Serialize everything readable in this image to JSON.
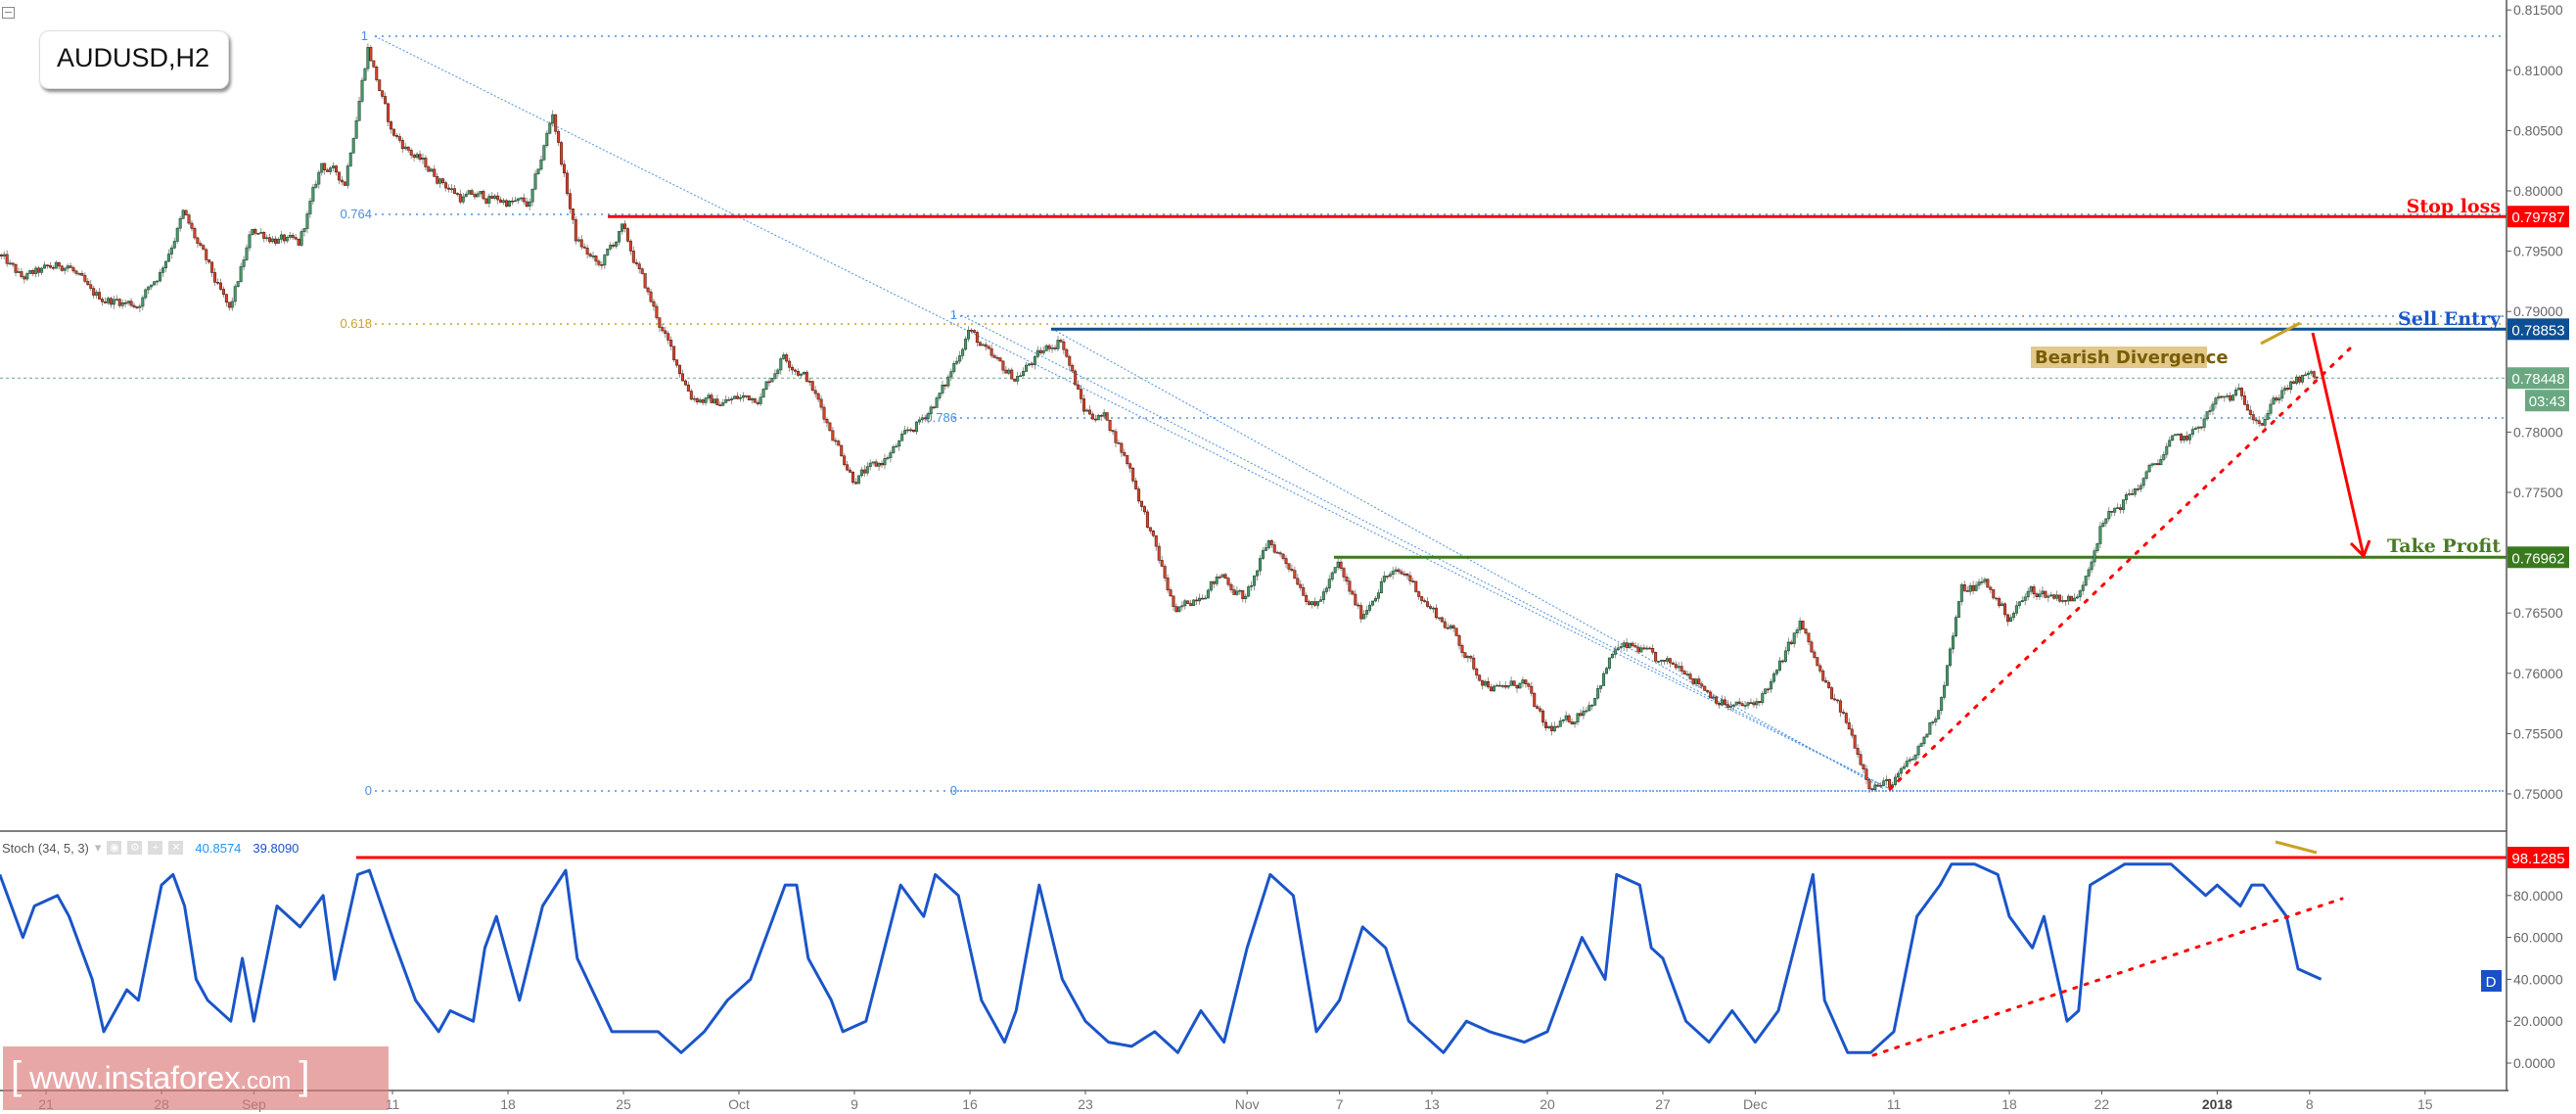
{
  "header": {
    "symbol_label": "AUDUSD,H2"
  },
  "indicator": {
    "name": "Stoch (34, 5, 3)",
    "value_k": "40.8574",
    "value_d": "39.8090",
    "d_badge": "D"
  },
  "watermark": {
    "left_bracket": "[",
    "text": "www.instaforex",
    "suffix": ".com",
    "right_bracket": "]"
  },
  "colors": {
    "bull": "#4c9a6e",
    "bear": "#d9452b",
    "stop_loss": "#ff0000",
    "sell_entry": "#0d4f94",
    "take_profit": "#3a7a1f",
    "last_price": "#6aa882",
    "fib": "#4a8fe0",
    "fib_618": "#c9a227",
    "stoch": "#1a55c9",
    "divergence": "#c9a227"
  },
  "levels": {
    "stop_loss": {
      "label": "Stop loss",
      "price": "0.79787"
    },
    "sell_entry": {
      "label": "Sell Entry",
      "price": "0.78853"
    },
    "take_profit": {
      "label": "Take Profit",
      "price": "0.76962"
    },
    "last_price": {
      "price": "0.78448",
      "countdown": "03:43"
    },
    "bearish_divergence": "Bearish Divergence",
    "stoch_level": "98.1285"
  },
  "fib_labels": {
    "a_1": "1",
    "a_0764": "0.764",
    "a_0618": "0.618",
    "a_0": "0",
    "b_1": "1",
    "b_0786": "0.786",
    "b_0": "0"
  },
  "chart_data": [
    {
      "type": "candlestick",
      "title": "AUDUSD,H2",
      "timeframe": "H2",
      "ylim": [
        0.748,
        0.8155
      ],
      "grid": false,
      "y_ticks": [
        "0.81500",
        "0.81000",
        "0.80500",
        "0.80000",
        "0.79500",
        "0.79000",
        "0.78000",
        "0.77500",
        "0.76500",
        "0.76000",
        "0.75500",
        "0.75000"
      ],
      "x_ticks": [
        {
          "label": "21",
          "date": "2017-08-21"
        },
        {
          "label": "28",
          "date": "2017-08-28"
        },
        {
          "label": "Sep",
          "date": "2017-09-01"
        },
        {
          "label": "11",
          "date": "2017-09-11"
        },
        {
          "label": "18",
          "date": "2017-09-18"
        },
        {
          "label": "25",
          "date": "2017-09-25"
        },
        {
          "label": "Oct",
          "date": "2017-10-02"
        },
        {
          "label": "9",
          "date": "2017-10-09"
        },
        {
          "label": "16",
          "date": "2017-10-16"
        },
        {
          "label": "23",
          "date": "2017-10-23"
        },
        {
          "label": "Nov",
          "date": "2017-11-01"
        },
        {
          "label": "7",
          "date": "2017-11-07"
        },
        {
          "label": "13",
          "date": "2017-11-13"
        },
        {
          "label": "20",
          "date": "2017-11-20"
        },
        {
          "label": "27",
          "date": "2017-11-27"
        },
        {
          "label": "Dec",
          "date": "2017-12-01"
        },
        {
          "label": "11",
          "date": "2017-12-11"
        },
        {
          "label": "18",
          "date": "2017-12-18"
        },
        {
          "label": "22",
          "date": "2017-12-22"
        },
        {
          "label": "2018",
          "date": "2018-01-02",
          "bold": true
        },
        {
          "label": "8",
          "date": "2018-01-08"
        },
        {
          "label": "15",
          "date": "2018-01-15"
        }
      ],
      "approx_close_path": [
        [
          "2017-08-17",
          0.7947
        ],
        [
          "2017-08-18",
          0.7927
        ],
        [
          "2017-08-22",
          0.794
        ],
        [
          "2017-08-23",
          0.7913
        ],
        [
          "2017-08-25",
          0.7906
        ],
        [
          "2017-08-28",
          0.7933
        ],
        [
          "2017-08-29",
          0.7981
        ],
        [
          "2017-08-31",
          0.7899
        ],
        [
          "2017-09-01",
          0.7968
        ],
        [
          "2017-09-05",
          0.7954
        ],
        [
          "2017-09-06",
          0.8022
        ],
        [
          "2017-09-07",
          0.8008
        ],
        [
          "2017-09-08",
          0.812
        ],
        [
          "2017-09-11",
          0.8049
        ],
        [
          "2017-09-12",
          0.8029
        ],
        [
          "2017-09-14",
          0.7995
        ],
        [
          "2017-09-15",
          0.7995
        ],
        [
          "2017-09-19",
          0.7988
        ],
        [
          "2017-09-20",
          0.8065
        ],
        [
          "2017-09-21",
          0.796
        ],
        [
          "2017-09-22",
          0.7936
        ],
        [
          "2017-09-25",
          0.7968
        ],
        [
          "2017-09-26",
          0.792
        ],
        [
          "2017-09-27",
          0.7872
        ],
        [
          "2017-09-28",
          0.7831
        ],
        [
          "2017-09-29",
          0.7824
        ],
        [
          "2017-10-03",
          0.7831
        ],
        [
          "2017-10-04",
          0.7865
        ],
        [
          "2017-10-05",
          0.7845
        ],
        [
          "2017-10-06",
          0.7804
        ],
        [
          "2017-10-09",
          0.7763
        ],
        [
          "2017-10-10",
          0.777
        ],
        [
          "2017-10-11",
          0.779
        ],
        [
          "2017-10-12",
          0.7811
        ],
        [
          "2017-10-13",
          0.7838
        ],
        [
          "2017-10-16",
          0.7886
        ],
        [
          "2017-10-17",
          0.7859
        ],
        [
          "2017-10-18",
          0.7845
        ],
        [
          "2017-10-20",
          0.7879
        ],
        [
          "2017-10-23",
          0.7818
        ],
        [
          "2017-10-24",
          0.7811
        ],
        [
          "2017-10-25",
          0.777
        ],
        [
          "2017-10-26",
          0.7709
        ],
        [
          "2017-10-27",
          0.7647
        ],
        [
          "2017-10-30",
          0.7668
        ],
        [
          "2017-10-31",
          0.7681
        ],
        [
          "2017-11-01",
          0.7661
        ],
        [
          "2017-11-02",
          0.7709
        ],
        [
          "2017-11-03",
          0.7688
        ],
        [
          "2017-11-06",
          0.7654
        ],
        [
          "2017-11-07",
          0.7688
        ],
        [
          "2017-11-08",
          0.7647
        ],
        [
          "2017-11-09",
          0.7681
        ],
        [
          "2017-11-10",
          0.7681
        ],
        [
          "2017-11-13",
          0.7654
        ],
        [
          "2017-11-14",
          0.7634
        ],
        [
          "2017-11-15",
          0.76
        ],
        [
          "2017-11-16",
          0.7586
        ],
        [
          "2017-11-17",
          0.7593
        ],
        [
          "2017-11-20",
          0.7552
        ],
        [
          "2017-11-21",
          0.7559
        ],
        [
          "2017-11-22",
          0.7579
        ],
        [
          "2017-11-23",
          0.762
        ],
        [
          "2017-11-24",
          0.762
        ],
        [
          "2017-11-27",
          0.7606
        ],
        [
          "2017-11-28",
          0.7606
        ],
        [
          "2017-11-29",
          0.7586
        ],
        [
          "2017-11-30",
          0.7572
        ],
        [
          "2017-12-01",
          0.7572
        ],
        [
          "2017-12-04",
          0.76
        ],
        [
          "2017-12-05",
          0.7641
        ],
        [
          "2017-12-06",
          0.7593
        ],
        [
          "2017-12-07",
          0.7559
        ],
        [
          "2017-12-08",
          0.7511
        ],
        [
          "2017-12-11",
          0.7507
        ],
        [
          "2017-12-12",
          0.7531
        ],
        [
          "2017-12-13",
          0.7572
        ],
        [
          "2017-12-14",
          0.7668
        ],
        [
          "2017-12-15",
          0.7675
        ],
        [
          "2017-12-18",
          0.7647
        ],
        [
          "2017-12-19",
          0.7668
        ],
        [
          "2017-12-21",
          0.7661
        ],
        [
          "2017-12-22",
          0.7722
        ],
        [
          "2017-12-27",
          0.7763
        ],
        [
          "2017-12-28",
          0.779
        ],
        [
          "2017-12-29",
          0.7797
        ],
        [
          "2018-01-02",
          0.7825
        ],
        [
          "2018-01-03",
          0.7831
        ],
        [
          "2018-01-04",
          0.7811
        ],
        [
          "2018-01-05",
          0.7838
        ],
        [
          "2018-01-08",
          0.78448
        ]
      ],
      "last_price": 0.78448
    },
    {
      "type": "line",
      "title": "Stoch (34, 5, 3)",
      "ylim": [
        0,
        100
      ],
      "y_ticks": [
        "80.0000",
        "60.0000",
        "40.0000",
        "20.0000",
        "0.0000"
      ],
      "series": [
        {
          "name": "Stoch",
          "points": [
            [
              "2017-08-17",
              90
            ],
            [
              "2017-08-18",
              60
            ],
            [
              "2017-08-18 12:00",
              75
            ],
            [
              "2017-08-21 12:00",
              80
            ],
            [
              "2017-08-22",
              70
            ],
            [
              "2017-08-23",
              40
            ],
            [
              "2017-08-23 12:00",
              15
            ],
            [
              "2017-08-24 12:00",
              35
            ],
            [
              "2017-08-25",
              30
            ],
            [
              "2017-08-28",
              85
            ],
            [
              "2017-08-28 12:00",
              90
            ],
            [
              "2017-08-29",
              75
            ],
            [
              "2017-08-29 12:00",
              40
            ],
            [
              "2017-08-30",
              30
            ],
            [
              "2017-08-31",
              20
            ],
            [
              "2017-08-31 12:00",
              50
            ],
            [
              "2017-09-01",
              20
            ],
            [
              "2017-09-04",
              75
            ],
            [
              "2017-09-05",
              65
            ],
            [
              "2017-09-06",
              80
            ],
            [
              "2017-09-06 12:00",
              40
            ],
            [
              "2017-09-07 12:00",
              90
            ],
            [
              "2017-09-08",
              92
            ],
            [
              "2017-09-11",
              60
            ],
            [
              "2017-09-12",
              30
            ],
            [
              "2017-09-13",
              15
            ],
            [
              "2017-09-13 12:00",
              25
            ],
            [
              "2017-09-14 12:00",
              20
            ],
            [
              "2017-09-15",
              55
            ],
            [
              "2017-09-15 12:00",
              70
            ],
            [
              "2017-09-18 12:00",
              30
            ],
            [
              "2017-09-19 12:00",
              75
            ],
            [
              "2017-09-20 12:00",
              92
            ],
            [
              "2017-09-21",
              50
            ],
            [
              "2017-09-22 12:00",
              15
            ],
            [
              "2017-09-25 12:00",
              15
            ],
            [
              "2017-09-26 12:00",
              15
            ],
            [
              "2017-09-27 12:00",
              5
            ],
            [
              "2017-09-28 12:00",
              15
            ],
            [
              "2017-09-29 12:00",
              30
            ],
            [
              "2017-10-02 12:00",
              40
            ],
            [
              "2017-10-04",
              85
            ],
            [
              "2017-10-04 12:00",
              85
            ],
            [
              "2017-10-05",
              50
            ],
            [
              "2017-10-06",
              30
            ],
            [
              "2017-10-06 12:00",
              15
            ],
            [
              "2017-10-09 12:00",
              20
            ],
            [
              "2017-10-11",
              85
            ],
            [
              "2017-10-12",
              70
            ],
            [
              "2017-10-12 12:00",
              90
            ],
            [
              "2017-10-13 12:00",
              80
            ],
            [
              "2017-10-16 12:00",
              30
            ],
            [
              "2017-10-17 12:00",
              10
            ],
            [
              "2017-10-18",
              25
            ],
            [
              "2017-10-19",
              85
            ],
            [
              "2017-10-20",
              40
            ],
            [
              "2017-10-23",
              20
            ],
            [
              "2017-10-24",
              10
            ],
            [
              "2017-10-25",
              8
            ],
            [
              "2017-10-26",
              15
            ],
            [
              "2017-10-27",
              5
            ],
            [
              "2017-10-30",
              25
            ],
            [
              "2017-10-31",
              10
            ],
            [
              "2017-11-01",
              55
            ],
            [
              "2017-11-02",
              90
            ],
            [
              "2017-11-03",
              80
            ],
            [
              "2017-11-06",
              15
            ],
            [
              "2017-11-07",
              30
            ],
            [
              "2017-11-08",
              65
            ],
            [
              "2017-11-09",
              55
            ],
            [
              "2017-11-10",
              20
            ],
            [
              "2017-11-13 12:00",
              5
            ],
            [
              "2017-11-14 12:00",
              20
            ],
            [
              "2017-11-15 12:00",
              15
            ],
            [
              "2017-11-17",
              10
            ],
            [
              "2017-11-20",
              15
            ],
            [
              "2017-11-21 12:00",
              60
            ],
            [
              "2017-11-22 12:00",
              40
            ],
            [
              "2017-11-23",
              90
            ],
            [
              "2017-11-24",
              85
            ],
            [
              "2017-11-24 12:00",
              55
            ],
            [
              "2017-11-27",
              50
            ],
            [
              "2017-11-28",
              20
            ],
            [
              "2017-11-29",
              10
            ],
            [
              "2017-11-30",
              25
            ],
            [
              "2017-12-01",
              10
            ],
            [
              "2017-12-04",
              25
            ],
            [
              "2017-12-05 12:00",
              90
            ],
            [
              "2017-12-06",
              30
            ],
            [
              "2017-12-07",
              5
            ],
            [
              "2017-12-08",
              5
            ],
            [
              "2017-12-11",
              15
            ],
            [
              "2017-12-12",
              70
            ],
            [
              "2017-12-13",
              85
            ],
            [
              "2017-12-13 12:00",
              95
            ],
            [
              "2017-12-14 12:00",
              95
            ],
            [
              "2017-12-15 12:00",
              90
            ],
            [
              "2017-12-18",
              70
            ],
            [
              "2017-12-19",
              55
            ],
            [
              "2017-12-19 12:00",
              70
            ],
            [
              "2017-12-20 12:00",
              20
            ],
            [
              "2017-12-21",
              25
            ],
            [
              "2017-12-21 12:00",
              85
            ],
            [
              "2017-12-26",
              95
            ],
            [
              "2017-12-27",
              95
            ],
            [
              "2017-12-28",
              95
            ],
            [
              "2017-12-28 12:00",
              90
            ],
            [
              "2017-12-29 12:00",
              80
            ],
            [
              "2018-01-02",
              85
            ],
            [
              "2018-01-03",
              75
            ],
            [
              "2018-01-03 12:00",
              85
            ],
            [
              "2018-01-04",
              85
            ],
            [
              "2018-01-05",
              70
            ],
            [
              "2018-01-05 12:00",
              45
            ],
            [
              "2018-01-08 12:00",
              40
            ]
          ]
        }
      ],
      "horizontal_level": 98.1285
    }
  ]
}
